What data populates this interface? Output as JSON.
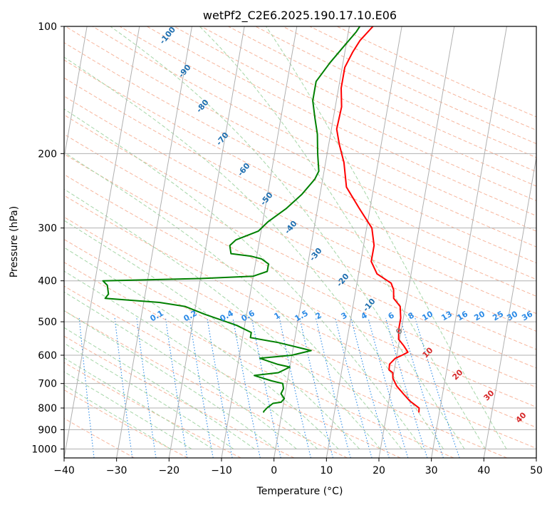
{
  "chart_data": {
    "type": "line",
    "title": "wetPf2_C2E6.2025.190.17.10.E06",
    "xlabel": "Temperature (°C)",
    "ylabel": "Pressure (hPa)",
    "xlim": [
      -40,
      50
    ],
    "ylim": [
      1050,
      100
    ],
    "y_scale": "log",
    "x_ticks": [
      "−40",
      "−30",
      "−20",
      "−10",
      "0",
      "10",
      "20",
      "30",
      "40",
      "50"
    ],
    "x_tick_values": [
      -40,
      -30,
      -20,
      -10,
      0,
      10,
      20,
      30,
      40,
      50
    ],
    "y_ticks": [
      "100",
      "200",
      "300",
      "400",
      "500",
      "600",
      "700",
      "800",
      "900",
      "1000"
    ],
    "y_tick_values": [
      100,
      200,
      300,
      400,
      500,
      600,
      700,
      800,
      900,
      1000
    ],
    "grid": true,
    "skew": "skew-T log-P diagram",
    "series": [
      {
        "color": "#ff0000",
        "points": [
          [
            26.1,
            820
          ],
          [
            26.0,
            800
          ],
          [
            24.0,
            770
          ],
          [
            22.5,
            740
          ],
          [
            21.0,
            710
          ],
          [
            20.0,
            680
          ],
          [
            19.8,
            660
          ],
          [
            19.0,
            650
          ],
          [
            18.9,
            630
          ],
          [
            19.8,
            610
          ],
          [
            21.0,
            600
          ],
          [
            22.0,
            590
          ],
          [
            21.0,
            570
          ],
          [
            19.8,
            550
          ],
          [
            19.5,
            520
          ],
          [
            19.5,
            490
          ],
          [
            19.0,
            460
          ],
          [
            17.5,
            440
          ],
          [
            17.2,
            420
          ],
          [
            16.5,
            405
          ],
          [
            13.5,
            385
          ],
          [
            12.0,
            360
          ],
          [
            12.0,
            330
          ],
          [
            11.0,
            300
          ],
          [
            8.0,
            270
          ],
          [
            4.8,
            240
          ],
          [
            3.5,
            210
          ],
          [
            2.0,
            190
          ],
          [
            1.0,
            175
          ],
          [
            1.2,
            155
          ],
          [
            0.5,
            140
          ],
          [
            0.5,
            125
          ],
          [
            1.5,
            115
          ],
          [
            2.5,
            108
          ],
          [
            4.5,
            100
          ]
        ]
      },
      {
        "color": "#008000",
        "points": [
          [
            -3.5,
            820
          ],
          [
            -3.5,
            815
          ],
          [
            -3.0,
            800
          ],
          [
            -2.0,
            780
          ],
          [
            -0.5,
            775
          ],
          [
            0.0,
            760
          ],
          [
            -0.8,
            740
          ],
          [
            -0.5,
            720
          ],
          [
            -0.8,
            700
          ],
          [
            -3.0,
            690
          ],
          [
            -6.5,
            670
          ],
          [
            -2.0,
            660
          ],
          [
            0.0,
            640
          ],
          [
            -2.5,
            630
          ],
          [
            -6.0,
            610
          ],
          [
            0.0,
            600
          ],
          [
            3.5,
            585
          ],
          [
            -3.0,
            560
          ],
          [
            -8.5,
            545
          ],
          [
            -8.5,
            530
          ],
          [
            -10.0,
            520
          ],
          [
            -11.5,
            510
          ],
          [
            -18.0,
            480
          ],
          [
            -22.0,
            460
          ],
          [
            -27.0,
            450
          ],
          [
            -37.5,
            440
          ],
          [
            -37.0,
            430
          ],
          [
            -37.5,
            410
          ],
          [
            -38.5,
            400
          ],
          [
            -20.0,
            395
          ],
          [
            -10.0,
            390
          ],
          [
            -7.5,
            380
          ],
          [
            -7.5,
            365
          ],
          [
            -9.0,
            355
          ],
          [
            -11.0,
            350
          ],
          [
            -15.0,
            345
          ],
          [
            -15.5,
            330
          ],
          [
            -14.5,
            320
          ],
          [
            -10.5,
            305
          ],
          [
            -9.0,
            290
          ],
          [
            -6.0,
            270
          ],
          [
            -3.5,
            250
          ],
          [
            -1.5,
            230
          ],
          [
            -1.0,
            220
          ],
          [
            -1.8,
            200
          ],
          [
            -2.5,
            180
          ],
          [
            -3.5,
            165
          ],
          [
            -4.5,
            150
          ],
          [
            -4.5,
            135
          ],
          [
            -2.5,
            122
          ],
          [
            -0.5,
            112
          ],
          [
            1.5,
            103
          ],
          [
            2.0,
            100
          ]
        ]
      }
    ],
    "dry_adiabat_labels": [
      "10",
      "20",
      "30",
      "40"
    ],
    "moist_adiabat_labels": [
      "-100",
      "-90",
      "-80",
      "-70",
      "-60",
      "-50",
      "-40",
      "-30",
      "-20",
      "-10"
    ],
    "zero_label": "0",
    "mixing_ratio_labels": [
      "0.1",
      "0.2",
      "0.4",
      "0.6",
      "1",
      "1.5",
      "2",
      "3",
      "4",
      "6",
      "8",
      "10",
      "13",
      "16",
      "20",
      "25",
      "30",
      "36"
    ],
    "mixing_ratio_values": [
      0.1,
      0.2,
      0.4,
      0.6,
      1,
      1.5,
      2,
      3,
      4,
      6,
      8,
      10,
      13,
      16,
      20,
      25,
      30,
      36
    ]
  }
}
